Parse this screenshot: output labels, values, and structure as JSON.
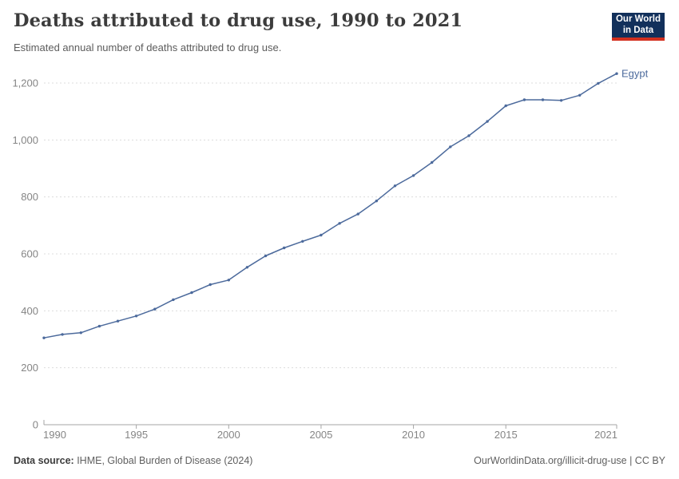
{
  "header": {
    "title": "Deaths attributed to drug use, 1990 to 2021",
    "subtitle": "Estimated annual number of deaths attributed to drug use."
  },
  "logo": {
    "line1": "Our World",
    "line2": "in Data",
    "background_color": "#12305b",
    "stripe_color": "#d3301f"
  },
  "footer": {
    "source_label": "Data source:",
    "source_text": " IHME, Global Burden of Disease (2024)",
    "right_text": "OurWorldinData.org/illicit-drug-use | CC BY"
  },
  "chart_data": {
    "type": "line",
    "title": "Deaths attributed to drug use, 1990 to 2021",
    "xlabel": "",
    "ylabel": "",
    "x": [
      1990,
      1991,
      1992,
      1993,
      1994,
      1995,
      1996,
      1997,
      1998,
      1999,
      2000,
      2001,
      2002,
      2003,
      2004,
      2005,
      2006,
      2007,
      2008,
      2009,
      2010,
      2011,
      2012,
      2013,
      2014,
      2015,
      2016,
      2017,
      2018,
      2019,
      2020,
      2021
    ],
    "series": [
      {
        "name": "Egypt",
        "color": "#4c6a9c",
        "values": [
          305,
          317,
          323,
          346,
          364,
          382,
          406,
          439,
          464,
          492,
          508,
          553,
          593,
          621,
          644,
          666,
          707,
          740,
          786,
          839,
          875,
          921,
          976,
          1015,
          1065,
          1120,
          1141,
          1141,
          1139,
          1157,
          1199,
          1233
        ]
      }
    ],
    "xticks": [
      1990,
      1995,
      2000,
      2005,
      2010,
      2015,
      2021
    ],
    "yticks": [
      0,
      200,
      400,
      600,
      800,
      1000,
      1200
    ],
    "xlim": [
      1990,
      2021
    ],
    "ylim": [
      0,
      1250
    ],
    "grid": "horizontal-dashed",
    "legend_position": "end-of-line-label",
    "grid_color": "#dcdcdc",
    "axis_color": "#a5a5a5",
    "tick_label_color": "#858585",
    "point_markers": true
  }
}
